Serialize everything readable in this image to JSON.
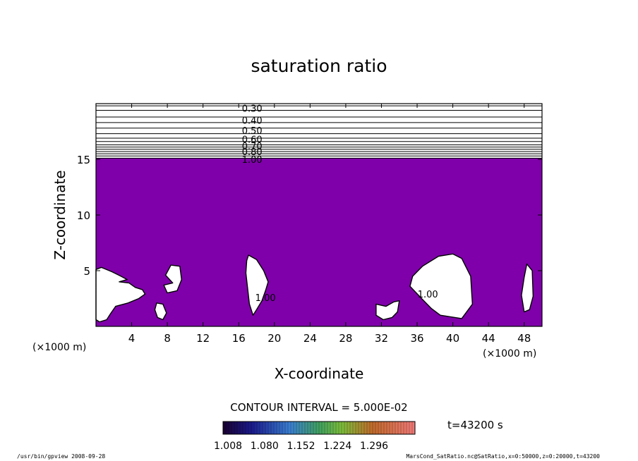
{
  "chart_data": {
    "type": "contour",
    "title": "saturation ratio",
    "xlabel": "X-coordinate",
    "ylabel": "Z-coordinate",
    "x_unit_left": "(×1000 m)",
    "x_unit_right": "(×1000 m)",
    "xlim": [
      0,
      50
    ],
    "ylim": [
      0,
      20
    ],
    "x_ticks": [
      4,
      8,
      12,
      16,
      20,
      24,
      28,
      32,
      36,
      40,
      44,
      48
    ],
    "y_ticks": [
      5,
      10,
      15
    ],
    "fill_color": "#7f00aa",
    "contour_lines_z": [
      15.1,
      15.3,
      15.5,
      15.7,
      15.9,
      16.1,
      16.3,
      16.6,
      16.9,
      17.3,
      17.8,
      18.3,
      18.8,
      19.4,
      19.8
    ],
    "contour_labels": [
      {
        "text": "0.30",
        "x": 17.5,
        "z": 19.6
      },
      {
        "text": "0.40",
        "x": 17.5,
        "z": 18.5
      },
      {
        "text": "0.50",
        "x": 17.5,
        "z": 17.6
      },
      {
        "text": "0.60",
        "x": 17.5,
        "z": 16.8
      },
      {
        "text": "0.70",
        "x": 17.5,
        "z": 16.2
      },
      {
        "text": "0.80",
        "x": 17.5,
        "z": 15.7
      },
      {
        "text": "1.00",
        "x": 17.5,
        "z": 15.0
      },
      {
        "text": "1.00",
        "x": 19.0,
        "z": 2.6
      },
      {
        "text": "1.00",
        "x": 37.2,
        "z": 2.9
      }
    ],
    "subsaturated_regions": [
      [
        [
          0,
          5.1
        ],
        [
          0.6,
          5.3
        ],
        [
          1.8,
          4.9
        ],
        [
          2.8,
          4.5
        ],
        [
          3.5,
          4.2
        ],
        [
          2.6,
          4.0
        ],
        [
          3.7,
          3.9
        ],
        [
          4.4,
          3.5
        ],
        [
          5.2,
          3.3
        ],
        [
          5.5,
          2.9
        ],
        [
          4.8,
          2.5
        ],
        [
          3.6,
          2.1
        ],
        [
          2.2,
          1.8
        ],
        [
          1.6,
          1.1
        ],
        [
          1.2,
          0.6
        ],
        [
          0.4,
          0.4
        ],
        [
          0,
          0.6
        ]
      ],
      [
        [
          8.4,
          5.5
        ],
        [
          9.4,
          5.4
        ],
        [
          9.6,
          4.2
        ],
        [
          9.1,
          3.2
        ],
        [
          8.0,
          3.0
        ],
        [
          7.6,
          3.7
        ],
        [
          8.6,
          3.9
        ],
        [
          7.8,
          4.6
        ]
      ],
      [
        [
          6.8,
          2.1
        ],
        [
          7.5,
          2.0
        ],
        [
          7.9,
          1.2
        ],
        [
          7.5,
          0.6
        ],
        [
          6.9,
          0.8
        ],
        [
          6.6,
          1.5
        ]
      ],
      [
        [
          17.1,
          6.4
        ],
        [
          18.0,
          6.0
        ],
        [
          18.8,
          5.0
        ],
        [
          19.3,
          4.0
        ],
        [
          19.0,
          3.2
        ],
        [
          18.6,
          2.3
        ],
        [
          18.0,
          1.5
        ],
        [
          17.6,
          1.0
        ],
        [
          17.2,
          2.0
        ],
        [
          17.0,
          3.4
        ],
        [
          16.8,
          4.8
        ],
        [
          16.9,
          5.9
        ]
      ],
      [
        [
          31.4,
          2.0
        ],
        [
          32.5,
          1.8
        ],
        [
          33.4,
          2.2
        ],
        [
          34.0,
          2.3
        ],
        [
          33.8,
          1.3
        ],
        [
          33.2,
          0.8
        ],
        [
          32.2,
          0.6
        ],
        [
          31.4,
          1.0
        ]
      ],
      [
        [
          38.4,
          6.3
        ],
        [
          40.0,
          6.5
        ],
        [
          41.0,
          6.1
        ],
        [
          42.0,
          4.5
        ],
        [
          42.2,
          2.0
        ],
        [
          41.0,
          0.7
        ],
        [
          38.6,
          1.0
        ],
        [
          37.6,
          1.6
        ],
        [
          36.5,
          2.5
        ],
        [
          35.2,
          3.6
        ],
        [
          35.5,
          4.5
        ],
        [
          36.6,
          5.4
        ]
      ],
      [
        [
          48.3,
          5.6
        ],
        [
          48.9,
          5.0
        ],
        [
          49.0,
          2.7
        ],
        [
          48.6,
          1.5
        ],
        [
          48.0,
          1.3
        ],
        [
          47.7,
          2.8
        ],
        [
          48.0,
          4.4
        ]
      ]
    ],
    "contour_interval_label": "CONTOUR INTERVAL = 5.000E-02",
    "time_label": "t=43200 s",
    "colorbar_ticks": [
      "1.008",
      "1.080",
      "1.152",
      "1.224",
      "1.296"
    ],
    "footer_left": "/usr/bin/gpview   2008-09-28",
    "footer_right": "MarsCond_SatRatio.nc@SatRatio,x=0:50000,z=0:20000,t=43200"
  }
}
